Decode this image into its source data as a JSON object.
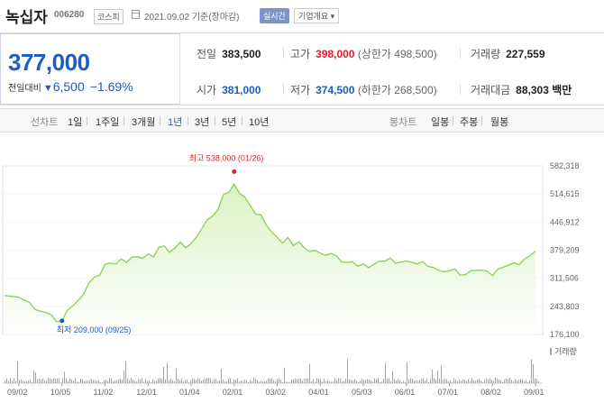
{
  "header": {
    "name": "녹십자",
    "code": "006280",
    "market": "코스피",
    "date": "2021.09.02 기준(장마감)",
    "realtime": "실시간",
    "company": "기업개요 ▾"
  },
  "summary": {
    "price": "377,000",
    "change_label": "전일대비",
    "change_icon": "▼",
    "change": "6,500",
    "rate": "−1.69%",
    "prev_label": "전일",
    "prev": "383,500",
    "high_label": "고가",
    "high": "398,000",
    "upper_limit": "(상한가 498,500)",
    "volume_label": "거래량",
    "volume": "227,559",
    "open_label": "시가",
    "open": "381,000",
    "low_label": "저가",
    "low": "374,500",
    "lower_limit": "(하한가 268,500)",
    "amount_label": "거래대금",
    "amount": "88,303 백만"
  },
  "tabs": {
    "line_label": "선차트",
    "line_items": [
      "1일",
      "1주일",
      "3개월",
      "1년",
      "3년",
      "5년",
      "10년"
    ],
    "active": "1년",
    "candle_label": "봉차트",
    "candle_items": [
      "일봉",
      "주봉",
      "월봉"
    ]
  },
  "colors": {
    "accent": "#1a5dc6",
    "up": "#e0202a",
    "line": "#86d150",
    "area": "#d9f3c3"
  },
  "chart_data": {
    "type": "area",
    "x": [
      "09/02",
      "10/05",
      "11/02",
      "12/01",
      "01/04",
      "02/01",
      "03/02",
      "04/01",
      "05/03",
      "06/01",
      "07/01",
      "08/02",
      "09/01"
    ],
    "y": [
      266000,
      209000,
      345000,
      370000,
      395000,
      538000,
      410000,
      372000,
      346000,
      353000,
      330000,
      318000,
      377000
    ],
    "yticks": [
      "582,318",
      "514,615",
      "446,912",
      "379,209",
      "311,506",
      "243,803",
      "176,100"
    ],
    "ylim": [
      176100,
      582318
    ],
    "max_label": "최고 538,000 (01/26)",
    "min_label": "최저 209,000 (09/25)",
    "volume_legend": "거래량"
  }
}
